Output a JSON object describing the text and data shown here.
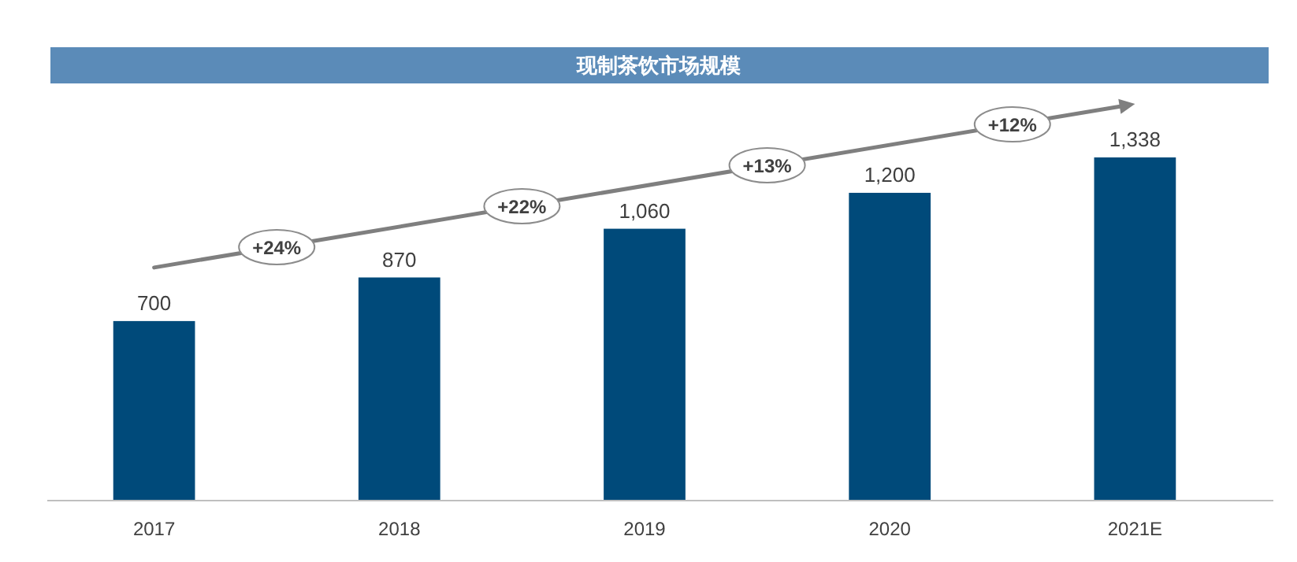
{
  "chart_data": {
    "type": "bar",
    "title": "现制茶饮市场规模",
    "categories": [
      "2017",
      "2018",
      "2019",
      "2020",
      "2021E"
    ],
    "values": [
      700,
      870,
      1060,
      1200,
      1338
    ],
    "value_labels": [
      "700",
      "870",
      "1,060",
      "1,200",
      "1,338"
    ],
    "color": "#004a7a",
    "tick_labels": "x",
    "annotations": [
      "+24%",
      "+22%",
      "+13%",
      "+12%"
    ]
  }
}
